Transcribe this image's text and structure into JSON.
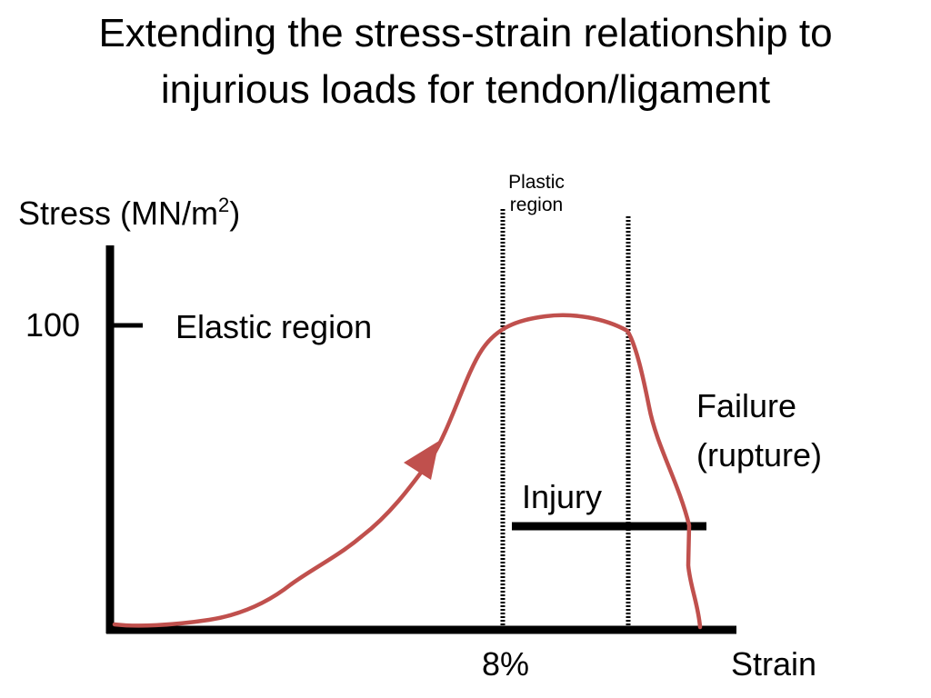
{
  "slide": {
    "title_line1": "Extending the stress-strain relationship to",
    "title_line2": "injurious loads for tendon/ligament"
  },
  "chart_data": {
    "type": "line",
    "y_axis": {
      "label": "Stress (MN/m",
      "label_sup": "2",
      "label_end": ")",
      "tick_label": "100"
    },
    "x_axis": {
      "label": "Strain",
      "tick_label": "8%"
    },
    "annotations": {
      "elastic": "Elastic region",
      "plastic_line1": "Plastic",
      "plastic_line2": "region",
      "failure_line1": "Failure",
      "failure_line2": "(rupture)",
      "injury": "Injury"
    },
    "colors": {
      "curve": "#c0504d",
      "axes": "#000000"
    },
    "grid": false
  }
}
